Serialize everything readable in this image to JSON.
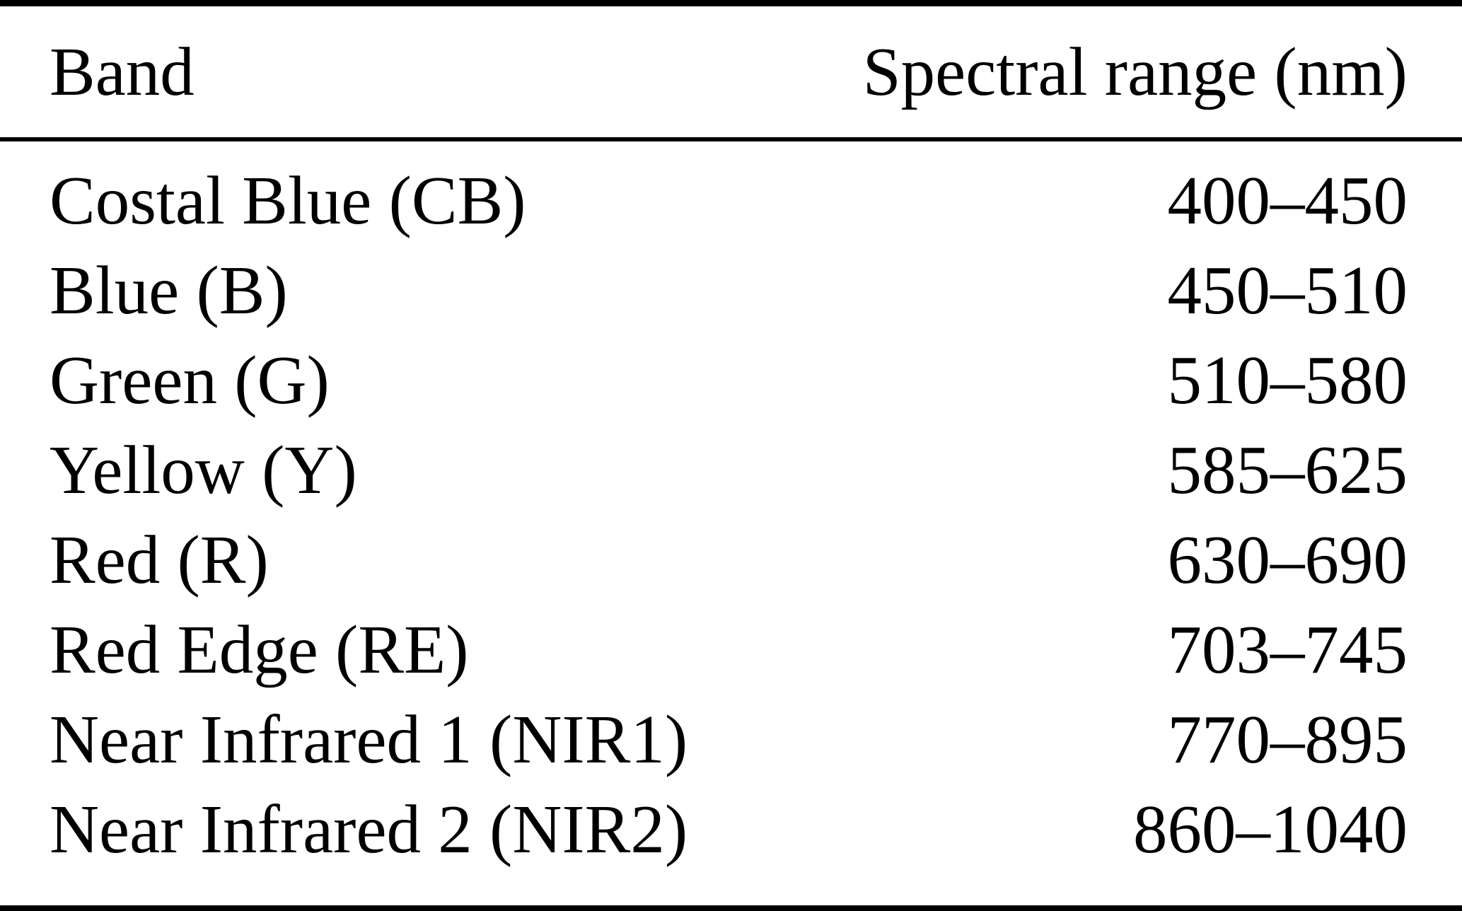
{
  "table": {
    "columns": [
      {
        "label": "Band",
        "align": "left"
      },
      {
        "label": "Spectral range (nm)",
        "align": "right"
      }
    ],
    "rows": [
      {
        "band": "Costal Blue (CB)",
        "range": "400–450"
      },
      {
        "band": "Blue (B)",
        "range": "450–510"
      },
      {
        "band": "Green (G)",
        "range": "510–580"
      },
      {
        "band": "Yellow (Y)",
        "range": "585–625"
      },
      {
        "band": "Red (R)",
        "range": "630–690"
      },
      {
        "band": "Red Edge (RE)",
        "range": "703–745"
      },
      {
        "band": "Near Infrared 1 (NIR1)",
        "range": "770–895"
      },
      {
        "band": "Near Infrared 2 (NIR2)",
        "range": "860–1040"
      }
    ],
    "colors": {
      "text": "#000000",
      "background": "#ffffff",
      "rule": "#000000"
    }
  },
  "chart_data": {
    "type": "table",
    "title": "",
    "columns": [
      "Band",
      "Spectral range (nm)"
    ],
    "rows": [
      [
        "Costal Blue (CB)",
        "400–450"
      ],
      [
        "Blue (B)",
        "450–510"
      ],
      [
        "Green (G)",
        "510–580"
      ],
      [
        "Yellow (Y)",
        "585–625"
      ],
      [
        "Red (R)",
        "630–690"
      ],
      [
        "Red Edge (RE)",
        "703–745"
      ],
      [
        "Near Infrared 1 (NIR1)",
        "770–895"
      ],
      [
        "Near Infrared 2 (NIR2)",
        "860–1040"
      ]
    ],
    "band_ranges_nm": [
      {
        "band": "Costal Blue (CB)",
        "min": 400,
        "max": 450
      },
      {
        "band": "Blue (B)",
        "min": 450,
        "max": 510
      },
      {
        "band": "Green (G)",
        "min": 510,
        "max": 580
      },
      {
        "band": "Yellow (Y)",
        "min": 585,
        "max": 625
      },
      {
        "band": "Red (R)",
        "min": 630,
        "max": 690
      },
      {
        "band": "Red Edge (RE)",
        "min": 703,
        "max": 745
      },
      {
        "band": "Near Infrared 1 (NIR1)",
        "min": 770,
        "max": 895
      },
      {
        "band": "Near Infrared 2 (NIR2)",
        "min": 860,
        "max": 1040
      }
    ]
  }
}
